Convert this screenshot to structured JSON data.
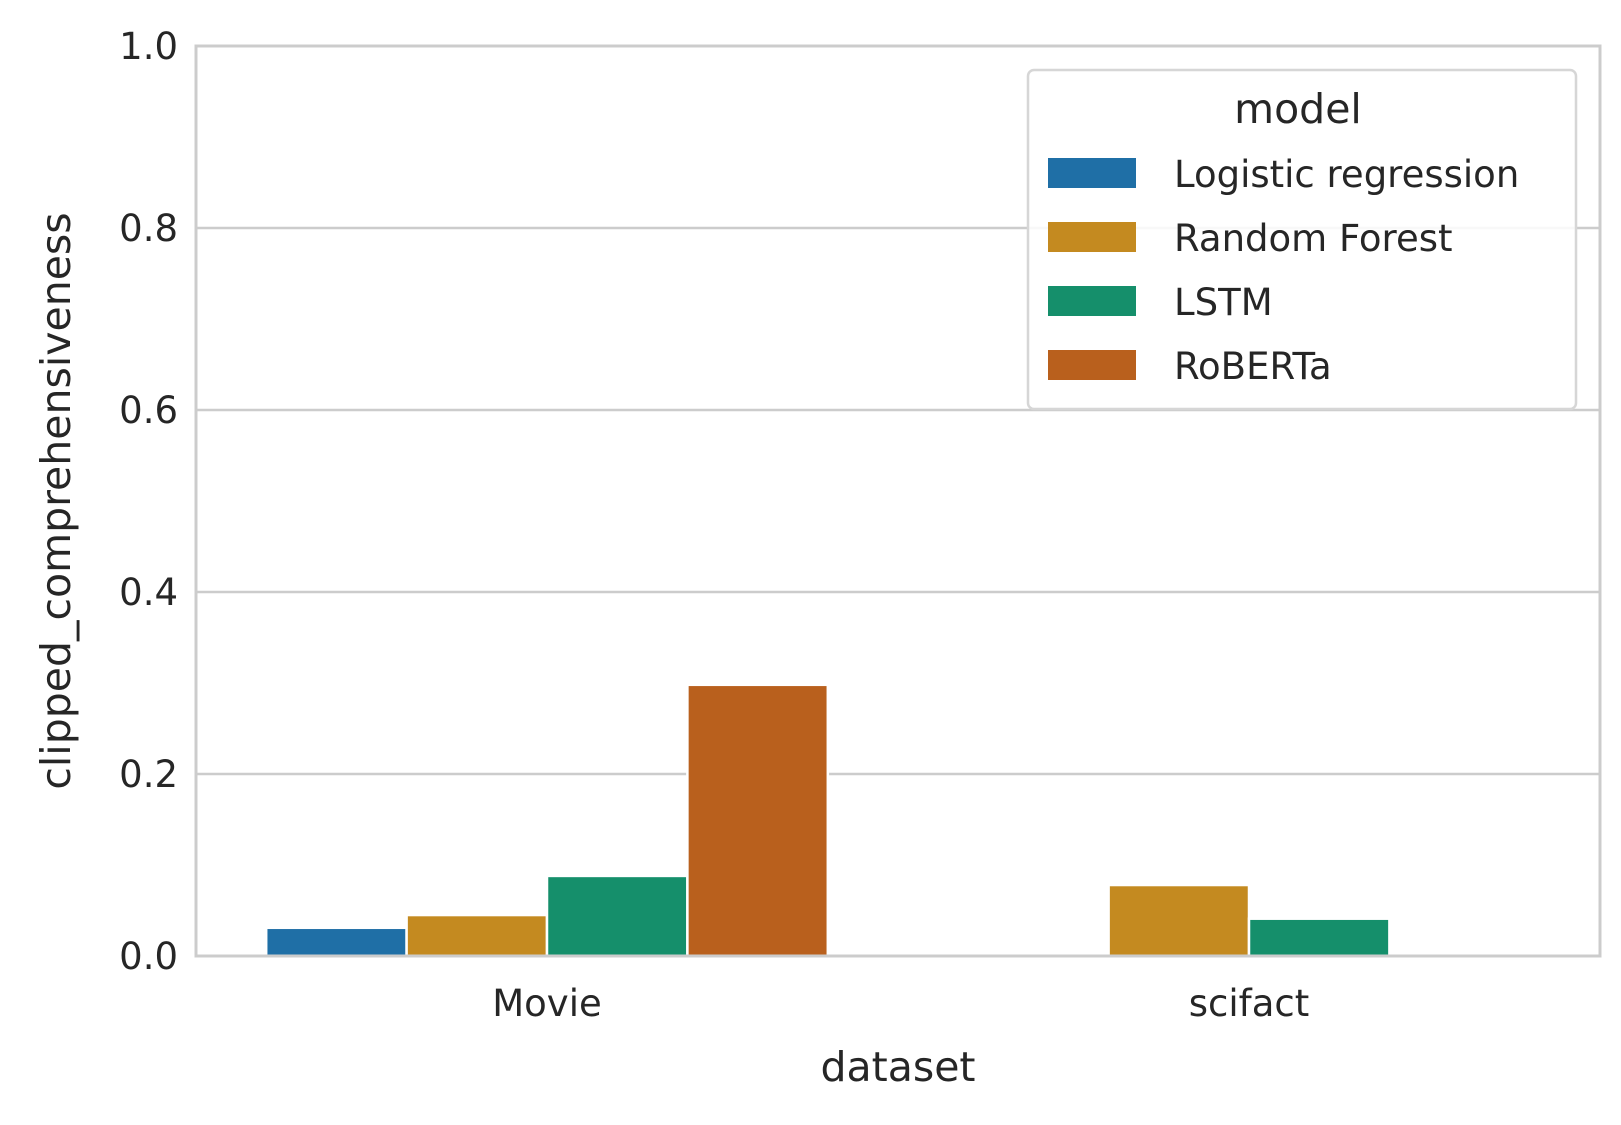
{
  "chart_data": {
    "type": "bar",
    "categories": [
      "Movie",
      "scifact"
    ],
    "series": [
      {
        "name": "Logistic regression",
        "color": "#1f6fa6",
        "values": [
          0.031,
          0.0
        ]
      },
      {
        "name": "Random Forest",
        "color": "#c48a20",
        "values": [
          0.045,
          0.078
        ]
      },
      {
        "name": "LSTM",
        "color": "#158f6b",
        "values": [
          0.088,
          0.041
        ]
      },
      {
        "name": "RoBERTa",
        "color": "#b9601d",
        "values": [
          0.298,
          0.0
        ]
      }
    ],
    "title": "",
    "xlabel": "dataset",
    "ylabel": "clipped_comprehensiveness",
    "ylim": [
      0.0,
      1.0
    ],
    "yticks": [
      0.0,
      0.2,
      0.4,
      0.6,
      0.8,
      1.0
    ],
    "ytick_labels": [
      "0.0",
      "0.2",
      "0.4",
      "0.6",
      "0.8",
      "1.0"
    ],
    "grid": "y",
    "legend": {
      "title": "model",
      "placement": "top-right"
    }
  }
}
